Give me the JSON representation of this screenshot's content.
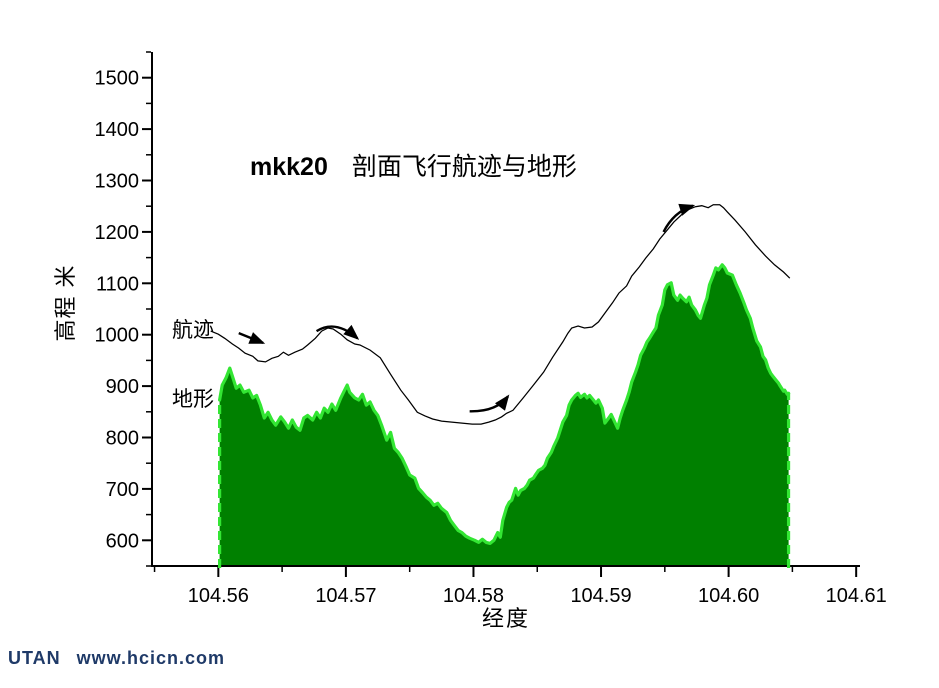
{
  "page": {
    "background": "#ffffff"
  },
  "watermark": {
    "brand": "UTAN",
    "url": "www.hcicn.com",
    "color": "#1f3a68"
  },
  "chart_data": {
    "type": "area",
    "title": {
      "prefix": "mkk20",
      "text": "剖面飞行航迹与地形"
    },
    "xlabel": "经度",
    "ylabel": "高程 米",
    "xlim": [
      104.5548,
      104.6103
    ],
    "ylim": [
      550,
      1550
    ],
    "baseline": 552,
    "grid": false,
    "colors": {
      "terrain_fill": "#008000",
      "terrain_edge": "#33e633",
      "flight_line": "#000000",
      "axis": "#000000"
    },
    "x_ticks": {
      "major": [
        {
          "v": 104.56,
          "label": "104.56"
        },
        {
          "v": 104.57,
          "label": "104.57"
        },
        {
          "v": 104.58,
          "label": "104.58"
        },
        {
          "v": 104.59,
          "label": "104.59"
        },
        {
          "v": 104.6,
          "label": "104.60"
        },
        {
          "v": 104.61,
          "label": "104.61"
        }
      ],
      "minor": [
        104.555,
        104.565,
        104.575,
        104.585,
        104.595,
        104.605
      ]
    },
    "y_ticks": {
      "major": [
        {
          "v": 600,
          "label": "600"
        },
        {
          "v": 700,
          "label": "700"
        },
        {
          "v": 800,
          "label": "800"
        },
        {
          "v": 900,
          "label": "900"
        },
        {
          "v": 1000,
          "label": "1000"
        },
        {
          "v": 1100,
          "label": "1100"
        },
        {
          "v": 1200,
          "label": "1200"
        },
        {
          "v": 1300,
          "label": "1300"
        },
        {
          "v": 1400,
          "label": "1400"
        },
        {
          "v": 1500,
          "label": "1500"
        }
      ],
      "minor": [
        550,
        650,
        750,
        850,
        950,
        1050,
        1150,
        1250,
        1350,
        1450,
        1550
      ]
    },
    "series": [
      {
        "name": "地形",
        "type": "area",
        "fill": "#008000",
        "stroke": "#33e633",
        "points": [
          [
            104.5601,
            873
          ],
          [
            104.5603,
            902
          ],
          [
            104.5606,
            916
          ],
          [
            104.5609,
            935
          ],
          [
            104.5612,
            912
          ],
          [
            104.5614,
            896
          ],
          [
            104.5617,
            902
          ],
          [
            104.562,
            888
          ],
          [
            104.5624,
            892
          ],
          [
            104.5627,
            877
          ],
          [
            104.563,
            882
          ],
          [
            104.5633,
            863
          ],
          [
            104.5636,
            838
          ],
          [
            104.5639,
            849
          ],
          [
            104.5642,
            834
          ],
          [
            104.5645,
            824
          ],
          [
            104.5649,
            840
          ],
          [
            104.5652,
            830
          ],
          [
            104.5655,
            818
          ],
          [
            104.5658,
            834
          ],
          [
            104.5661,
            820
          ],
          [
            104.5664,
            814
          ],
          [
            104.5667,
            838
          ],
          [
            104.567,
            843
          ],
          [
            104.5674,
            834
          ],
          [
            104.5677,
            849
          ],
          [
            104.568,
            838
          ],
          [
            104.5683,
            857
          ],
          [
            104.5686,
            849
          ],
          [
            104.5689,
            865
          ],
          [
            104.5692,
            853
          ],
          [
            104.5696,
            877
          ],
          [
            104.5699,
            892
          ],
          [
            104.5701,
            902
          ],
          [
            104.5703,
            888
          ],
          [
            104.5707,
            877
          ],
          [
            104.571,
            873
          ],
          [
            104.5713,
            884
          ],
          [
            104.5716,
            863
          ],
          [
            104.5719,
            869
          ],
          [
            104.5722,
            853
          ],
          [
            104.5725,
            843
          ],
          [
            104.5728,
            824
          ],
          [
            104.5732,
            795
          ],
          [
            104.5735,
            810
          ],
          [
            104.5738,
            779
          ],
          [
            104.5741,
            771
          ],
          [
            104.5744,
            760
          ],
          [
            104.5747,
            744
          ],
          [
            104.575,
            727
          ],
          [
            104.5754,
            721
          ],
          [
            104.5757,
            701
          ],
          [
            104.576,
            693
          ],
          [
            104.5763,
            684
          ],
          [
            104.5766,
            678
          ],
          [
            104.5769,
            668
          ],
          [
            104.5772,
            672
          ],
          [
            104.5775,
            662
          ],
          [
            104.5779,
            654
          ],
          [
            104.5782,
            639
          ],
          [
            104.5785,
            629
          ],
          [
            104.5788,
            619
          ],
          [
            104.5791,
            615
          ],
          [
            104.5794,
            608
          ],
          [
            104.5797,
            604
          ],
          [
            104.5801,
            600
          ],
          [
            104.5804,
            596
          ],
          [
            104.5807,
            602
          ],
          [
            104.581,
            596
          ],
          [
            104.5813,
            594
          ],
          [
            104.5816,
            600
          ],
          [
            104.5819,
            615
          ],
          [
            104.5821,
            606
          ],
          [
            104.5823,
            639
          ],
          [
            104.5826,
            664
          ],
          [
            104.5828,
            674
          ],
          [
            104.583,
            678
          ],
          [
            104.5833,
            701
          ],
          [
            104.5835,
            688
          ],
          [
            104.5837,
            697
          ],
          [
            104.584,
            701
          ],
          [
            104.5842,
            707
          ],
          [
            104.5844,
            717
          ],
          [
            104.5847,
            721
          ],
          [
            104.5849,
            729
          ],
          [
            104.5851,
            736
          ],
          [
            104.5854,
            740
          ],
          [
            104.5856,
            746
          ],
          [
            104.5858,
            760
          ],
          [
            104.5861,
            771
          ],
          [
            104.5863,
            783
          ],
          [
            104.5866,
            799
          ],
          [
            104.5868,
            814
          ],
          [
            104.587,
            830
          ],
          [
            104.5873,
            843
          ],
          [
            104.5875,
            863
          ],
          [
            104.5877,
            873
          ],
          [
            104.588,
            882
          ],
          [
            104.5882,
            886
          ],
          [
            104.5884,
            878
          ],
          [
            104.5887,
            884
          ],
          [
            104.5889,
            877
          ],
          [
            104.5891,
            882
          ],
          [
            104.5894,
            873
          ],
          [
            104.5896,
            867
          ],
          [
            104.5898,
            873
          ],
          [
            104.5901,
            857
          ],
          [
            104.5903,
            828
          ],
          [
            104.5906,
            838
          ],
          [
            104.5908,
            845
          ],
          [
            104.591,
            834
          ],
          [
            104.5913,
            818
          ],
          [
            104.5915,
            838
          ],
          [
            104.5917,
            853
          ],
          [
            104.592,
            873
          ],
          [
            104.5922,
            888
          ],
          [
            104.5924,
            908
          ],
          [
            104.5927,
            927
          ],
          [
            104.5929,
            941
          ],
          [
            104.5931,
            960
          ],
          [
            104.5934,
            974
          ],
          [
            104.5936,
            986
          ],
          [
            104.5938,
            993
          ],
          [
            104.5941,
            1005
          ],
          [
            104.5943,
            1013
          ],
          [
            104.5945,
            1038
          ],
          [
            104.5948,
            1058
          ],
          [
            104.595,
            1087
          ],
          [
            104.5952,
            1097
          ],
          [
            104.5955,
            1101
          ],
          [
            104.5957,
            1077
          ],
          [
            104.596,
            1067
          ],
          [
            104.5962,
            1077
          ],
          [
            104.5964,
            1071
          ],
          [
            104.5967,
            1064
          ],
          [
            104.5969,
            1073
          ],
          [
            104.5971,
            1058
          ],
          [
            104.5974,
            1048
          ],
          [
            104.5976,
            1038
          ],
          [
            104.5978,
            1032
          ],
          [
            104.5981,
            1058
          ],
          [
            104.5983,
            1071
          ],
          [
            104.5985,
            1097
          ],
          [
            104.5988,
            1116
          ],
          [
            104.599,
            1130
          ],
          [
            104.5992,
            1126
          ],
          [
            104.5995,
            1136
          ],
          [
            104.5997,
            1130
          ],
          [
            104.5999,
            1120
          ],
          [
            104.6003,
            1116
          ],
          [
            104.6006,
            1097
          ],
          [
            104.6009,
            1081
          ],
          [
            104.6012,
            1062
          ],
          [
            104.6014,
            1048
          ],
          [
            104.6017,
            1032
          ],
          [
            104.6019,
            1013
          ],
          [
            104.6022,
            988
          ],
          [
            104.6025,
            976
          ],
          [
            104.6027,
            958
          ],
          [
            104.6029,
            951
          ],
          [
            104.6031,
            935
          ],
          [
            104.6033,
            925
          ],
          [
            104.6035,
            918
          ],
          [
            104.6037,
            912
          ],
          [
            104.6039,
            906
          ],
          [
            104.604,
            902
          ],
          [
            104.6043,
            890
          ],
          [
            104.6044,
            892
          ],
          [
            104.6046,
            884
          ],
          [
            104.6047,
            886
          ]
        ]
      },
      {
        "name": "航迹",
        "type": "line",
        "color": "#000000",
        "points": [
          [
            104.5594,
            1007
          ],
          [
            104.56,
            1001
          ],
          [
            104.5605,
            993
          ],
          [
            104.5611,
            982
          ],
          [
            104.5616,
            974
          ],
          [
            104.5621,
            964
          ],
          [
            104.5627,
            958
          ],
          [
            104.5631,
            949
          ],
          [
            104.5637,
            947
          ],
          [
            104.5642,
            954
          ],
          [
            104.5647,
            958
          ],
          [
            104.5651,
            966
          ],
          [
            104.5655,
            960
          ],
          [
            104.566,
            966
          ],
          [
            104.5666,
            972
          ],
          [
            104.567,
            980
          ],
          [
            104.5676,
            993
          ],
          [
            104.5681,
            1007
          ],
          [
            104.5686,
            1013
          ],
          [
            104.569,
            1011
          ],
          [
            104.5696,
            1001
          ],
          [
            104.5701,
            990
          ],
          [
            104.5707,
            982
          ],
          [
            104.5711,
            980
          ],
          [
            104.5719,
            970
          ],
          [
            104.5727,
            955
          ],
          [
            104.5735,
            923
          ],
          [
            104.5743,
            892
          ],
          [
            104.5749,
            873
          ],
          [
            104.5756,
            849
          ],
          [
            104.5762,
            842
          ],
          [
            104.5768,
            836
          ],
          [
            104.5775,
            832
          ],
          [
            104.5783,
            830
          ],
          [
            104.5791,
            828
          ],
          [
            104.5799,
            826
          ],
          [
            104.5806,
            826
          ],
          [
            104.5812,
            830
          ],
          [
            104.5817,
            834
          ],
          [
            104.5822,
            840
          ],
          [
            104.5826,
            847
          ],
          [
            104.5831,
            853
          ],
          [
            104.5839,
            877
          ],
          [
            104.5847,
            902
          ],
          [
            104.5855,
            927
          ],
          [
            104.5862,
            956
          ],
          [
            104.587,
            986
          ],
          [
            104.5874,
            1003
          ],
          [
            104.5877,
            1013
          ],
          [
            104.5882,
            1017
          ],
          [
            104.5887,
            1013
          ],
          [
            104.5893,
            1015
          ],
          [
            104.5898,
            1025
          ],
          [
            104.5903,
            1042
          ],
          [
            104.5909,
            1062
          ],
          [
            104.5914,
            1081
          ],
          [
            104.592,
            1095
          ],
          [
            104.5924,
            1114
          ],
          [
            104.593,
            1132
          ],
          [
            104.5935,
            1149
          ],
          [
            104.5941,
            1167
          ],
          [
            104.5946,
            1186
          ],
          [
            104.5952,
            1204
          ],
          [
            104.5957,
            1219
          ],
          [
            104.5963,
            1233
          ],
          [
            104.5968,
            1243
          ],
          [
            104.5974,
            1249
          ],
          [
            104.5979,
            1251
          ],
          [
            104.5984,
            1247
          ],
          [
            104.5988,
            1253
          ],
          [
            104.5993,
            1253
          ],
          [
            104.5996,
            1247
          ],
          [
            104.5999,
            1239
          ],
          [
            104.6005,
            1223
          ],
          [
            104.6013,
            1200
          ],
          [
            104.6021,
            1175
          ],
          [
            104.6029,
            1153
          ],
          [
            104.6036,
            1136
          ],
          [
            104.6043,
            1122
          ],
          [
            104.6048,
            1110
          ]
        ]
      }
    ],
    "annotations": {
      "labels": [
        {
          "text": "航迹",
          "for": "flight-path"
        },
        {
          "text": "地形",
          "for": "terrain"
        }
      ],
      "arrows": [
        {
          "kind": "line",
          "from": [
            104.5616,
            1003
          ],
          "to": [
            104.5635,
            984
          ]
        },
        {
          "kind": "curve",
          "from": [
            104.5677,
            1007
          ],
          "ctrl": [
            104.5692,
            1030
          ],
          "to": [
            104.5709,
            993
          ]
        },
        {
          "kind": "curve",
          "from": [
            104.5797,
            851
          ],
          "ctrl": [
            104.5818,
            850
          ],
          "to": [
            104.5827,
            880
          ]
        },
        {
          "kind": "curve",
          "from": [
            104.5949,
            1200
          ],
          "ctrl": [
            104.5957,
            1239
          ],
          "to": [
            104.5972,
            1251
          ]
        }
      ]
    }
  }
}
